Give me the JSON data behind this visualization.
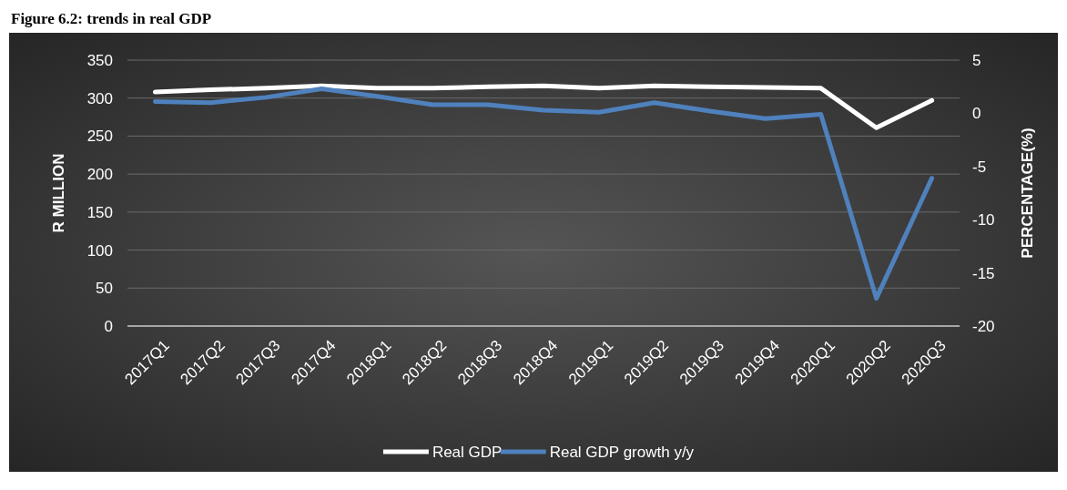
{
  "chart_data": {
    "type": "line",
    "title": "Figure 6.2: trends in real GDP",
    "ylabel": "R MILLION",
    "y2label": "PERCENTAGE(%)",
    "categories": [
      "2017Q1",
      "2017Q2",
      "2017Q3",
      "2017Q4",
      "2018Q1",
      "2018Q2",
      "2018Q3",
      "2018Q4",
      "2019Q1",
      "2019Q2",
      "2019Q3",
      "2019Q4",
      "2020Q1",
      "2020Q2",
      "2020Q3"
    ],
    "series": [
      {
        "name": "Real GDP",
        "color": "#ffffff",
        "values": [
          308,
          311,
          313,
          316,
          313,
          313,
          315,
          316,
          313,
          316,
          315,
          314,
          313,
          261,
          297
        ]
      },
      {
        "name": "Real GDP growth y/y",
        "color": "#4f81bd",
        "axis": "y2",
        "values": [
          1.1,
          1.0,
          1.5,
          2.3,
          1.6,
          0.8,
          0.8,
          0.3,
          0.1,
          1.0,
          0.2,
          -0.5,
          -0.1,
          -17.4,
          -6.1
        ]
      }
    ],
    "ylim": [
      0,
      350
    ],
    "yticks": [
      0,
      50,
      100,
      150,
      200,
      250,
      300,
      350
    ],
    "y2lim": [
      -20,
      5
    ],
    "y2ticks": [
      -20,
      -15,
      -10,
      -5,
      0,
      5
    ],
    "grid": "y",
    "legend": "bottom",
    "marker": "none",
    "line_style": "solid"
  }
}
